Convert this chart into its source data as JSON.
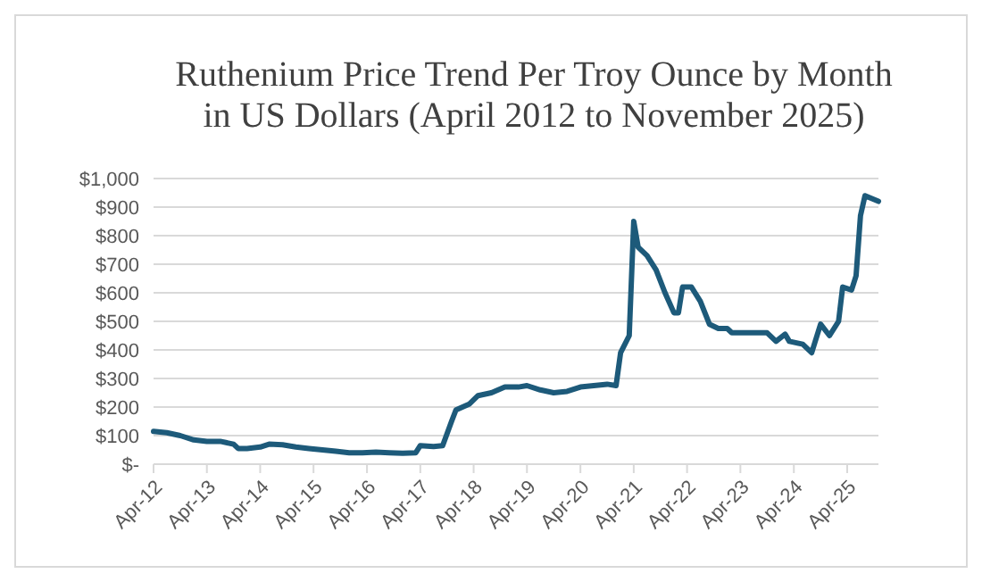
{
  "chart_data": {
    "type": "line",
    "title": "Ruthenium Price Trend Per Troy Ounce by Month in US Dollars (April 2012 to November 2025)",
    "x": [
      "2012-04",
      "2012-07",
      "2012-10",
      "2013-01",
      "2013-04",
      "2013-07",
      "2013-10",
      "2013-11",
      "2014-01",
      "2014-04",
      "2014-06",
      "2014-09",
      "2014-12",
      "2015-03",
      "2015-06",
      "2015-09",
      "2015-12",
      "2016-03",
      "2016-06",
      "2016-09",
      "2016-12",
      "2017-03",
      "2017-04",
      "2017-07",
      "2017-09",
      "2017-11",
      "2017-12",
      "2018-03",
      "2018-05",
      "2018-08",
      "2018-11",
      "2019-02",
      "2019-04",
      "2019-07",
      "2019-10",
      "2020-01",
      "2020-04",
      "2020-07",
      "2020-10",
      "2020-12",
      "2021-01",
      "2021-03",
      "2021-04",
      "2021-05",
      "2021-07",
      "2021-09",
      "2021-11",
      "2022-01",
      "2022-02",
      "2022-03",
      "2022-05",
      "2022-07",
      "2022-09",
      "2022-11",
      "2023-01",
      "2023-02",
      "2023-06",
      "2023-10",
      "2023-12",
      "2024-02",
      "2024-03",
      "2024-06",
      "2024-08",
      "2024-10",
      "2024-12",
      "2025-02",
      "2025-03",
      "2025-05",
      "2025-06",
      "2025-07",
      "2025-08",
      "2025-11"
    ],
    "series": [
      {
        "color": "#1d5a7a",
        "values": [
          115,
          110,
          100,
          85,
          80,
          80,
          70,
          55,
          55,
          60,
          70,
          68,
          60,
          55,
          50,
          45,
          40,
          40,
          42,
          40,
          38,
          40,
          65,
          62,
          65,
          150,
          190,
          210,
          240,
          250,
          270,
          270,
          275,
          260,
          250,
          255,
          270,
          275,
          280,
          275,
          390,
          450,
          850,
          760,
          730,
          680,
          600,
          530,
          530,
          620,
          620,
          570,
          490,
          475,
          475,
          460,
          460,
          460,
          430,
          455,
          430,
          420,
          390,
          490,
          450,
          500,
          620,
          610,
          660,
          870,
          940,
          920
        ]
      }
    ],
    "xlim": [
      "2012-04",
      "2025-11"
    ],
    "xticks": [
      {
        "value": "2012-04",
        "label": "Apr-12"
      },
      {
        "value": "2013-04",
        "label": "Apr-13"
      },
      {
        "value": "2014-04",
        "label": "Apr-14"
      },
      {
        "value": "2015-04",
        "label": "Apr-15"
      },
      {
        "value": "2016-04",
        "label": "Apr-16"
      },
      {
        "value": "2017-04",
        "label": "Apr-17"
      },
      {
        "value": "2018-04",
        "label": "Apr-18"
      },
      {
        "value": "2019-04",
        "label": "Apr-19"
      },
      {
        "value": "2020-04",
        "label": "Apr-20"
      },
      {
        "value": "2021-04",
        "label": "Apr-21"
      },
      {
        "value": "2022-04",
        "label": "Apr-22"
      },
      {
        "value": "2023-04",
        "label": "Apr-23"
      },
      {
        "value": "2024-04",
        "label": "Apr-24"
      },
      {
        "value": "2025-04",
        "label": "Apr-25"
      }
    ],
    "ylim": [
      0,
      1000
    ],
    "yticks": [
      {
        "value": 0,
        "label": "$-"
      },
      {
        "value": 100,
        "label": "$100"
      },
      {
        "value": 200,
        "label": "$200"
      },
      {
        "value": 300,
        "label": "$300"
      },
      {
        "value": 400,
        "label": "$400"
      },
      {
        "value": 500,
        "label": "$500"
      },
      {
        "value": 600,
        "label": "$600"
      },
      {
        "value": 700,
        "label": "$700"
      },
      {
        "value": 800,
        "label": "$800"
      },
      {
        "value": 900,
        "label": "$900"
      },
      {
        "value": 1000,
        "label": "$1,000"
      }
    ],
    "grid": "y",
    "marker": "none",
    "line_style": "solid"
  }
}
